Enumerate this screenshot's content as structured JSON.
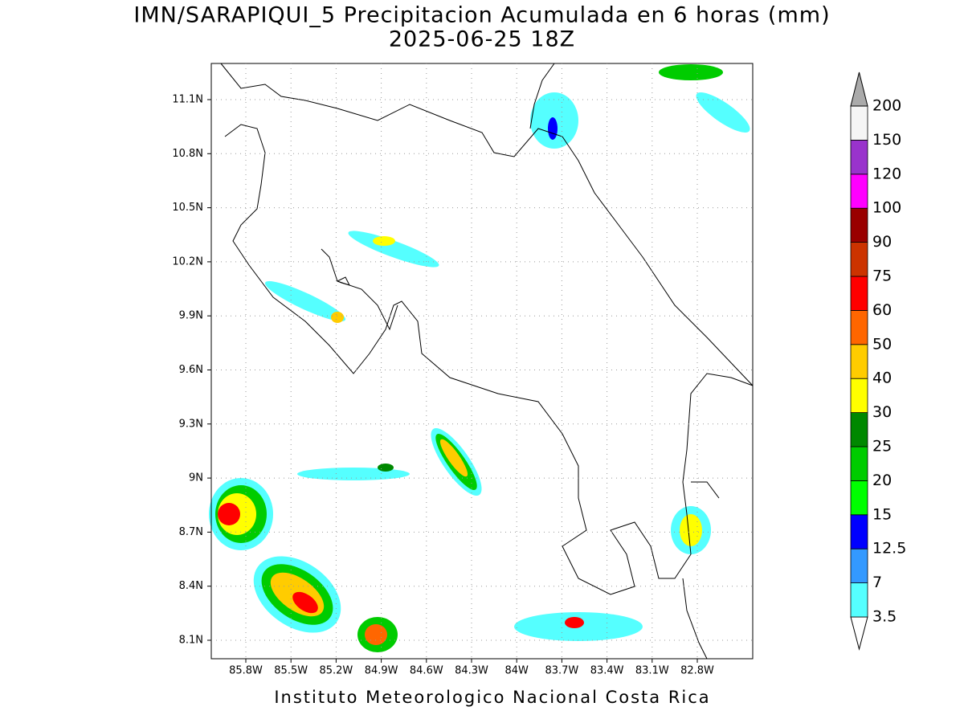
{
  "title": "IMN/SARAPIQUI_5 Precipitacion Acumulada en 6 horas (mm)",
  "subtitle": "2025-06-25 18Z",
  "map": {
    "lat_ticks": [
      "11.1N",
      "10.8N",
      "10.5N",
      "10.2N",
      "9.9N",
      "9.6N",
      "9.3N",
      "9N",
      "8.7N",
      "8.4N",
      "8.1N"
    ],
    "lon_ticks": [
      "85.8W",
      "85.5W",
      "85.2W",
      "84.9W",
      "84.6W",
      "84.3W",
      "84W",
      "83.7W",
      "83.4W",
      "83.1W",
      "82.8W"
    ]
  },
  "colorbar": {
    "labels": [
      "3.5",
      "7",
      "12.5",
      "15",
      "20",
      "25",
      "30",
      "40",
      "50",
      "60",
      "75",
      "90",
      "100",
      "120",
      "150",
      "200"
    ],
    "colors": [
      "#55ffff",
      "#3399ff",
      "#0000ff",
      "#00ff00",
      "#00cc00",
      "#008800",
      "#ffff00",
      "#ffcc00",
      "#ff6600",
      "#ff0000",
      "#cc3300",
      "#990000",
      "#ff00ff",
      "#9933cc",
      "#f5f5f5"
    ],
    "under_color": "#ffffff",
    "over_color": "#aaaaaa"
  },
  "footer": "Instituto Meteorologico Nacional Costa Rica"
}
